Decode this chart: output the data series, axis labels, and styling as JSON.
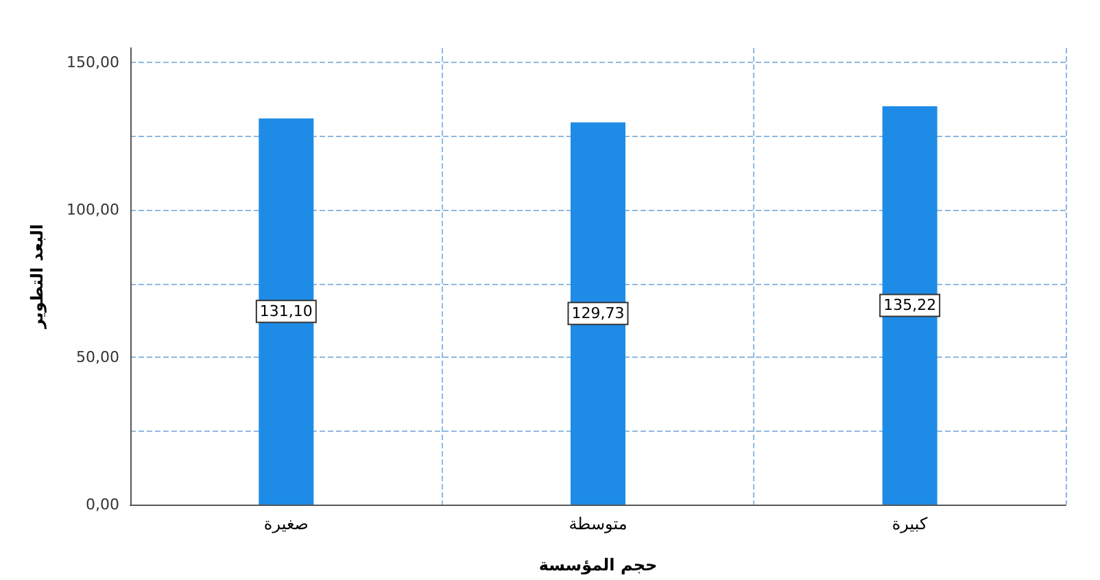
{
  "chart_data": {
    "type": "bar",
    "xlabel": "حجم المؤسسة",
    "ylabel": "البعد التطوير",
    "categories": [
      "صغيرة",
      "متوسطة",
      "كبيرة"
    ],
    "values": [
      131.1,
      129.73,
      135.22
    ],
    "value_labels": [
      "131,10",
      "129,73",
      "135,22"
    ],
    "color": "#1e8ce6",
    "ylim": [
      0,
      155
    ],
    "yticks": [
      {
        "value": 0,
        "label": "0,00"
      },
      {
        "value": 25,
        "label": null
      },
      {
        "value": 50,
        "label": "50,00"
      },
      {
        "value": 75,
        "label": null
      },
      {
        "value": 100,
        "label": "100,00"
      },
      {
        "value": 125,
        "label": null
      },
      {
        "value": 150,
        "label": "150,00"
      }
    ],
    "grid": true
  }
}
